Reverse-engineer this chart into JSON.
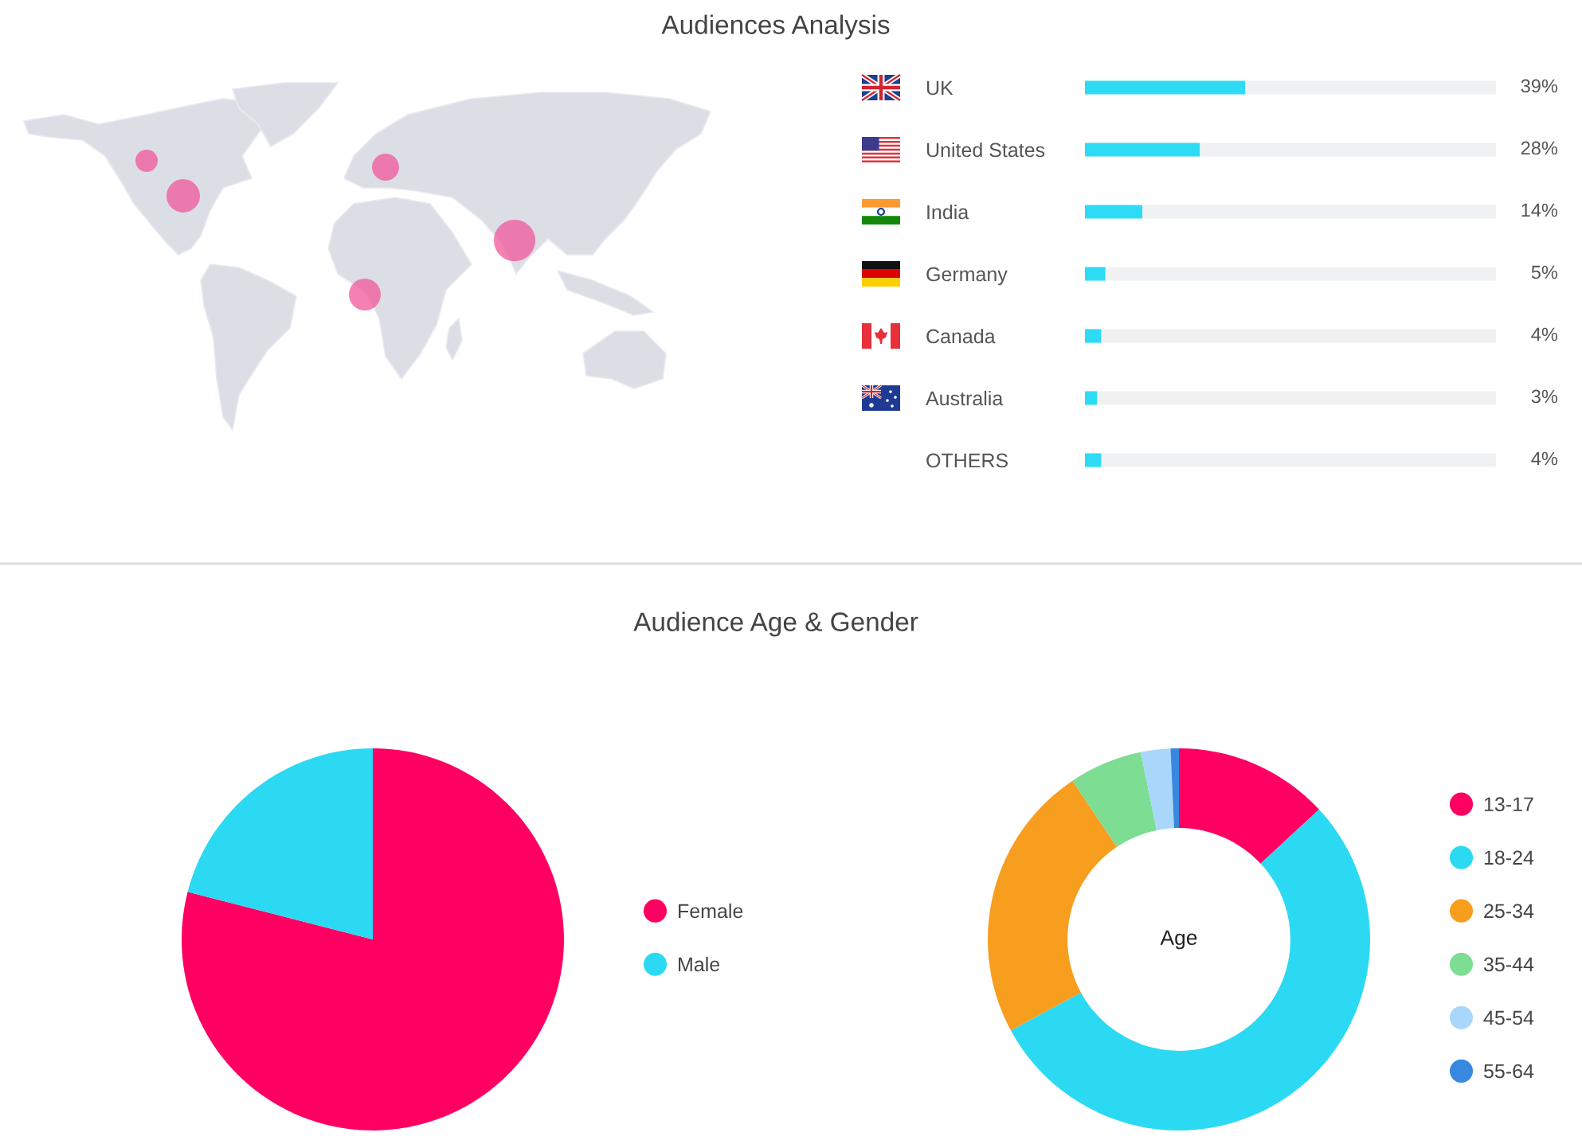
{
  "chart_data": [
    {
      "type": "bar",
      "title": "Audiences Analysis",
      "orientation": "horizontal",
      "stacked": true,
      "categories": [
        "UK",
        "United States",
        "India",
        "Germany",
        "Canada",
        "Australia",
        "OTHERS"
      ],
      "series": [
        {
          "color": "#2ddbf5",
          "values": [
            39,
            28,
            14,
            5,
            4,
            3,
            4
          ],
          "value_labels": [
            "39%",
            "28%",
            "14%",
            "5%",
            "4%",
            "3%",
            "4%"
          ]
        },
        {
          "color": "#f0f1f3",
          "values": [
            61,
            72,
            86,
            95,
            96,
            97,
            96
          ]
        }
      ],
      "xlim": [
        0,
        100
      ],
      "tick_labels": "y"
    },
    {
      "type": "pie",
      "title": "Audience Age & Gender",
      "categories": [
        "Female",
        "Male"
      ],
      "values": [
        79,
        21
      ],
      "colors": [
        "#ff0062",
        "#2bd9f3"
      ],
      "legend": "right"
    },
    {
      "type": "donut",
      "title": "Age",
      "categories": [
        "13-17",
        "18-24",
        "25-34",
        "35-44",
        "45-54",
        "55-64"
      ],
      "values": [
        13.1,
        54.0,
        23.5,
        6.2,
        2.5,
        0.7
      ],
      "colors": [
        "#ff0062",
        "#2bd9f3",
        "#f79e1f",
        "#7cdd93",
        "#a9d7fb",
        "#3988e0"
      ],
      "legend": "right"
    }
  ]
}
